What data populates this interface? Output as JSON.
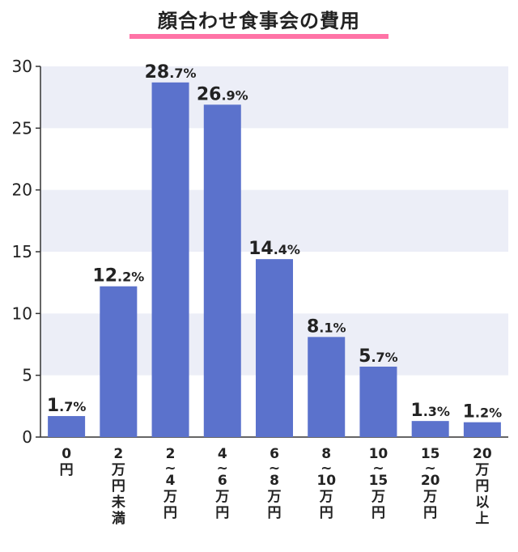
{
  "colors": {
    "bar": "#5b72cc",
    "band": "#eceef7",
    "underline": "#ff73a6",
    "text": "#222222"
  },
  "chart_data": {
    "type": "bar",
    "title": "顔合わせ食事会の費用",
    "categories": [
      [
        "0",
        "円"
      ],
      [
        "2",
        "万円未満"
      ],
      [
        "2",
        "~",
        "4",
        "万円"
      ],
      [
        "4",
        "~",
        "6",
        "万円"
      ],
      [
        "6",
        "~",
        "8",
        "万円"
      ],
      [
        "8",
        "~",
        "10",
        "万円"
      ],
      [
        "10",
        "~",
        "15",
        "万円"
      ],
      [
        "15",
        "~",
        "20",
        "万円"
      ],
      [
        "20",
        "万円以上"
      ]
    ],
    "values": [
      1.7,
      12.2,
      28.7,
      26.9,
      14.4,
      8.1,
      5.7,
      1.3,
      1.2
    ],
    "unit": "%",
    "ylim": [
      0,
      30
    ],
    "yticks": [
      0,
      5,
      10,
      15,
      20,
      25,
      30
    ],
    "xlabel": "",
    "ylabel": "",
    "grid": "alternating horizontal bands"
  }
}
